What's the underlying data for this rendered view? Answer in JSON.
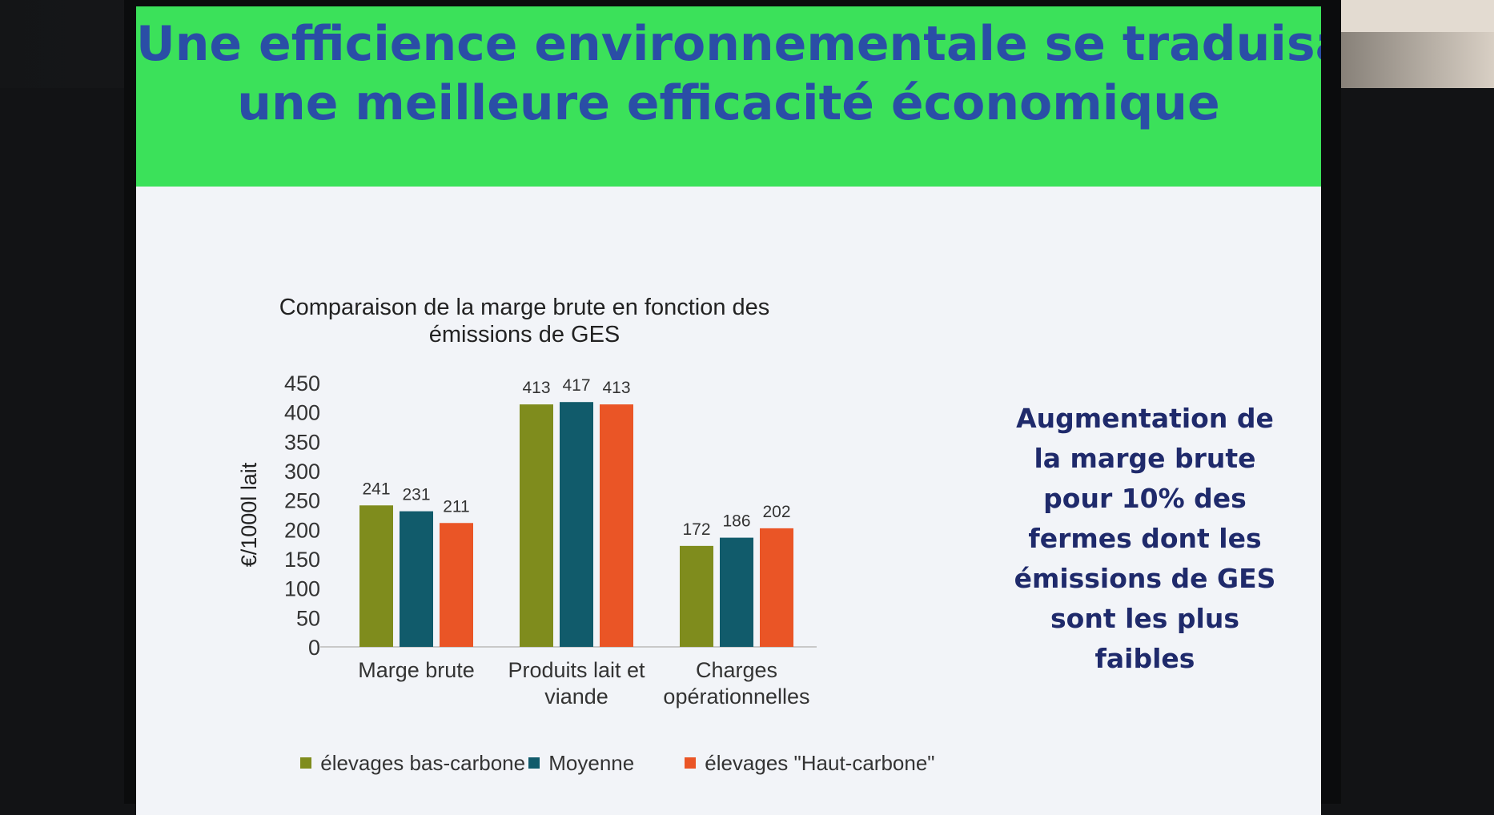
{
  "slide": {
    "title_lines": [
      "Une efficience environnementale se traduisant par",
      "une meilleure efficacité économique"
    ],
    "side_text": "Augmentation de la marge brute pour 10% des fermes dont les émissions de GES sont les plus faibles",
    "colors": {
      "header": "#3be15a",
      "title_text": "#2a4ea6",
      "side_text": "#1f2a6b"
    }
  },
  "chart_data": {
    "type": "bar",
    "title": "Comparaison de la marge brute en fonction des émissions de GES",
    "ylabel": "€/1000l lait",
    "ylim": [
      0,
      450
    ],
    "yticks": [
      0,
      50,
      100,
      150,
      200,
      250,
      300,
      350,
      400,
      450
    ],
    "categories": [
      "Marge brute",
      "Produits lait et viande",
      "Charges opérationnelles"
    ],
    "series": [
      {
        "name": "élevages bas-carbone",
        "color": "#7f8c1d",
        "values": [
          241,
          413,
          172
        ]
      },
      {
        "name": "Moyenne",
        "color": "#115b6b",
        "values": [
          231,
          417,
          186
        ]
      },
      {
        "name": "élevages \"Haut-carbone\"",
        "color": "#ea5526",
        "values": [
          211,
          413,
          202
        ]
      }
    ],
    "grid": false,
    "legend": "bottom"
  }
}
